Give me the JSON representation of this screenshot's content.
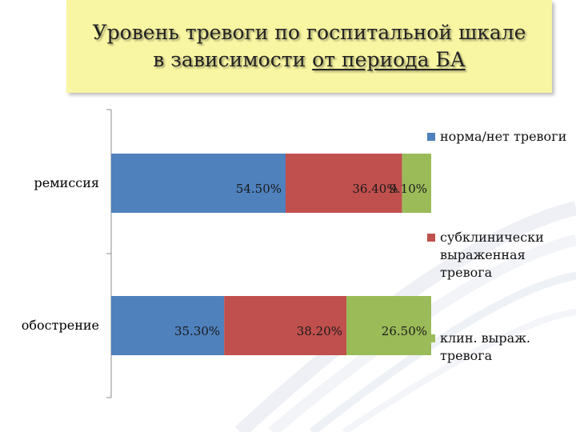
{
  "title": {
    "line1": "Уровень тревоги по госпитальной шкале",
    "line2_pre": "в зависимости ",
    "line2_underlined": "от периода БА"
  },
  "colors": {
    "series": [
      "#4f81bd",
      "#c0504d",
      "#9bbb59"
    ],
    "title_bg": "#f8f6a2"
  },
  "chart_data": {
    "type": "bar",
    "orientation": "horizontal",
    "stacked": true,
    "categories": [
      "ремиссия",
      "обострение"
    ],
    "series": [
      {
        "name": "норма/нет тревоги",
        "values": [
          54.5,
          35.3
        ],
        "labels": [
          "54.50%",
          "35.30%"
        ]
      },
      {
        "name": "субклинически выраженная тревога",
        "values": [
          36.4,
          38.2
        ],
        "labels": [
          "36.40%",
          "38.20%"
        ]
      },
      {
        "name": "клин. выраж. тревога",
        "values": [
          9.1,
          26.5
        ],
        "labels": [
          "9.10%",
          "26.50%"
        ]
      }
    ],
    "xlim": [
      0,
      100
    ],
    "grid": false,
    "legend_position": "right"
  }
}
